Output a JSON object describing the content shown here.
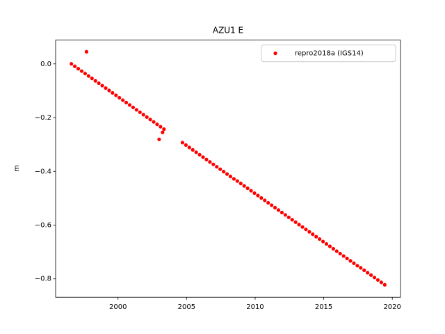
{
  "chart_data": {
    "type": "scatter",
    "title": "AZU1 E",
    "y_label": "m",
    "xlim": [
      1995.45,
      2020.6
    ],
    "ylim": [
      -0.8685,
      0.0885
    ],
    "xticks": [
      2000,
      2005,
      2010,
      2015,
      2020
    ],
    "yticks": [
      {
        "value": -0.8,
        "label": "−0.8"
      },
      {
        "value": -0.6,
        "label": "−0.6"
      },
      {
        "value": -0.4,
        "label": "−0.4"
      },
      {
        "value": -0.2,
        "label": "−0.2"
      },
      {
        "value": 0,
        "label": "0.0"
      }
    ],
    "legend": "upper right",
    "series": [
      {
        "name": "repro2018a (IGS14)",
        "color": "#ff0000",
        "x": [
          1996.6,
          1996.85,
          1997.1,
          1997.35,
          1997.6,
          1997.7,
          1997.85,
          1998.1,
          1998.35,
          1998.6,
          1998.85,
          1999.1,
          1999.35,
          1999.6,
          1999.85,
          2000.1,
          2000.35,
          2000.6,
          2000.85,
          2001.1,
          2001.35,
          2001.6,
          2001.85,
          2002.1,
          2002.35,
          2002.6,
          2002.85,
          2003.0,
          2003.1,
          2003.25,
          2003.35,
          2004.7,
          2004.95,
          2005.2,
          2005.45,
          2005.7,
          2005.95,
          2006.2,
          2006.45,
          2006.7,
          2006.95,
          2007.2,
          2007.45,
          2007.7,
          2007.95,
          2008.2,
          2008.45,
          2008.7,
          2008.95,
          2009.2,
          2009.45,
          2009.7,
          2009.95,
          2010.2,
          2010.45,
          2010.7,
          2010.95,
          2011.2,
          2011.45,
          2011.7,
          2011.95,
          2012.2,
          2012.45,
          2012.7,
          2012.95,
          2013.2,
          2013.45,
          2013.7,
          2013.95,
          2014.2,
          2014.45,
          2014.7,
          2014.95,
          2015.2,
          2015.45,
          2015.7,
          2015.95,
          2016.2,
          2016.45,
          2016.7,
          2016.95,
          2017.2,
          2017.45,
          2017.7,
          2017.95,
          2018.2,
          2018.45,
          2018.7,
          2018.95,
          2019.2,
          2019.45
        ],
        "values": [
          0.0,
          -0.009,
          -0.018,
          -0.027,
          -0.036,
          0.045,
          -0.045,
          -0.054,
          -0.063,
          -0.072,
          -0.081,
          -0.09,
          -0.099,
          -0.108,
          -0.117,
          -0.126,
          -0.135,
          -0.144,
          -0.153,
          -0.162,
          -0.171,
          -0.18,
          -0.189,
          -0.198,
          -0.207,
          -0.216,
          -0.225,
          -0.281,
          -0.234,
          -0.255,
          -0.243,
          -0.293,
          -0.302,
          -0.311,
          -0.32,
          -0.329,
          -0.338,
          -0.347,
          -0.356,
          -0.365,
          -0.374,
          -0.383,
          -0.392,
          -0.401,
          -0.41,
          -0.419,
          -0.428,
          -0.436,
          -0.445,
          -0.454,
          -0.463,
          -0.472,
          -0.481,
          -0.49,
          -0.499,
          -0.508,
          -0.517,
          -0.526,
          -0.535,
          -0.544,
          -0.553,
          -0.562,
          -0.571,
          -0.58,
          -0.589,
          -0.598,
          -0.607,
          -0.616,
          -0.625,
          -0.634,
          -0.643,
          -0.652,
          -0.661,
          -0.67,
          -0.679,
          -0.688,
          -0.697,
          -0.706,
          -0.715,
          -0.724,
          -0.733,
          -0.742,
          -0.751,
          -0.759,
          -0.768,
          -0.777,
          -0.786,
          -0.795,
          -0.804,
          -0.813,
          -0.822
        ]
      }
    ]
  }
}
